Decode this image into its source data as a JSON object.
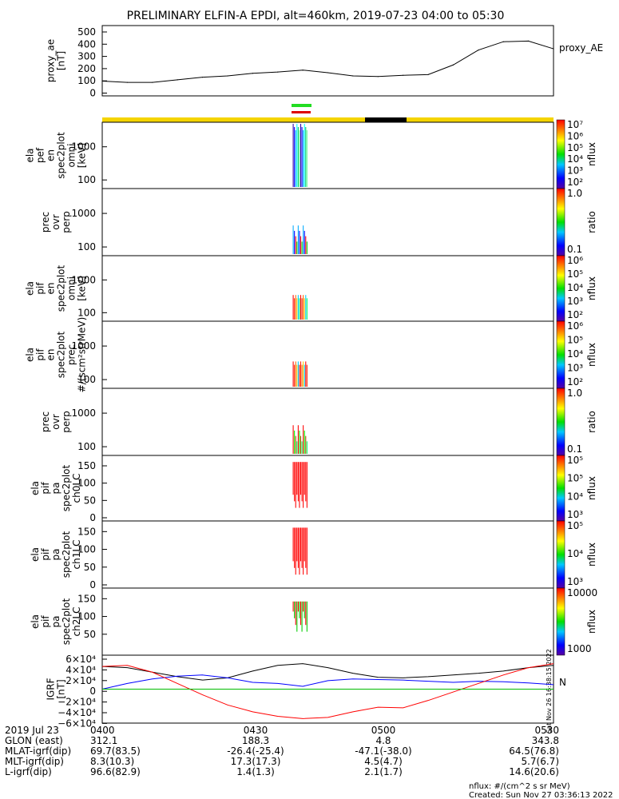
{
  "title": "PRELIMINARY ELFIN-A EPDI, alt=460km, 2019-07-23 04:00 to 05:30",
  "colors": {
    "status_bar": "#f5d400",
    "eclipse_bar": "#000000",
    "science_green": "#22dd22",
    "science_red": "#dd0000",
    "background": "#ffffff"
  },
  "panels": [
    {
      "ylabel": [
        "proxy_ae",
        "[nT]"
      ],
      "right_label": "proxy_AE",
      "yticks": [
        "500",
        "400",
        "300",
        "200",
        "100",
        "0"
      ]
    },
    {
      "ylabel": [
        "ela",
        "pef",
        "en",
        "spec2plot",
        "omni",
        "[keV]"
      ],
      "yticks": [
        "1000",
        "100"
      ],
      "colorbar": {
        "ticks": [
          "10⁷",
          "10⁶",
          "10⁵",
          "10⁴",
          "10³",
          "10²"
        ],
        "label": "nflux"
      }
    },
    {
      "ylabel": [
        "prec",
        "ovr",
        "perp"
      ],
      "yticks": [
        "1000",
        "100"
      ],
      "colorbar": {
        "ticks": [
          "1.0",
          "0.1"
        ],
        "label": "ratio"
      }
    },
    {
      "ylabel": [
        "ela",
        "pif",
        "en",
        "spec2plot",
        "omni",
        "[keV]"
      ],
      "yticks": [
        "1000",
        "100"
      ],
      "colorbar": {
        "ticks": [
          "10⁶",
          "10⁵",
          "10⁴",
          "10³",
          "10²"
        ],
        "label": "nflux"
      }
    },
    {
      "ylabel": [
        "ela",
        "pif",
        "en",
        "spec2plot",
        "prec",
        "#/(scm²strMeV)"
      ],
      "yticks": [
        "1000",
        "100"
      ],
      "colorbar": {
        "ticks": [
          "10⁶",
          "10⁵",
          "10⁴",
          "10³",
          "10²"
        ],
        "label": "nflux"
      }
    },
    {
      "ylabel": [
        "prec",
        "ovr",
        "perp"
      ],
      "yticks": [
        "1000",
        "100"
      ],
      "colorbar": {
        "ticks": [
          "1.0",
          "0.1"
        ],
        "label": "ratio"
      }
    },
    {
      "ylabel": [
        "ela",
        "pif",
        "pa",
        "spec2plot",
        "ch0LC"
      ],
      "yticks": [
        "150",
        "100",
        "50",
        "0"
      ],
      "colorbar": {
        "ticks": [
          "10⁵",
          "10⁵",
          "10⁴",
          "10³"
        ],
        "label": "nflux"
      }
    },
    {
      "ylabel": [
        "ela",
        "pif",
        "pa",
        "spec2plot",
        "ch1LC"
      ],
      "yticks": [
        "150",
        "100",
        "50",
        "0"
      ],
      "colorbar": {
        "ticks": [
          "10⁵",
          "10⁴",
          "10³"
        ],
        "label": "nflux"
      }
    },
    {
      "ylabel": [
        "ela",
        "pif",
        "pa",
        "spec2plot",
        "ch2LC"
      ],
      "yticks": [
        "150",
        "100",
        "50"
      ],
      "colorbar": {
        "ticks": [
          "10000",
          "1000"
        ],
        "label": "nflux"
      }
    },
    {
      "ylabel": [
        "IGRF",
        "[nT]"
      ],
      "yticks": [
        "6×10⁴",
        "4×10⁴",
        "2×10⁴",
        "0",
        "−2×10⁴",
        "−4×10⁴",
        "−6×10⁴"
      ],
      "side_text": "Sat Nov 26 16:38:15 2022",
      "legend_glyph": "N"
    }
  ],
  "ephemeris": {
    "rows": [
      {
        "label": "2019 Jul 23",
        "values": [
          "0400",
          "0430",
          "0500",
          "0530"
        ]
      },
      {
        "label": "GLON (east)",
        "values": [
          "312.1",
          "188.3",
          "4.8",
          "343.8"
        ]
      },
      {
        "label": "MLAT-igrf(dip)",
        "values": [
          "69.7(83.5)",
          "-26.4(-25.4)",
          "-47.1(-38.0)",
          "64.5(76.8)"
        ]
      },
      {
        "label": "MLT-igrf(dip)",
        "values": [
          "8.3(10.3)",
          "17.3(17.3)",
          "4.5(4.7)",
          "5.7(6.7)"
        ]
      },
      {
        "label": "L-igrf(dip)",
        "values": [
          "96.6(82.9)",
          "1.4(1.3)",
          "2.1(1.7)",
          "14.6(20.6)"
        ]
      }
    ]
  },
  "footer": {
    "units": "nflux: #/(cm^2 s sr MeV)",
    "created": "Created: Sun Nov 27 03:36:13 2022"
  },
  "chart_data": [
    {
      "type": "line",
      "title": "PRELIMINARY ELFIN-A EPDI, alt=460km, 2019-07-23 04:00 to 05:30",
      "ylabel": "proxy_ae [nT]",
      "x": [
        "04:00",
        "04:05",
        "04:10",
        "04:15",
        "04:20",
        "04:25",
        "04:30",
        "04:35",
        "04:40",
        "04:45",
        "04:50",
        "04:55",
        "05:00",
        "05:05",
        "05:10",
        "05:15",
        "05:20",
        "05:25",
        "05:30"
      ],
      "series": [
        {
          "name": "proxy_AE",
          "values": [
            90,
            80,
            80,
            100,
            120,
            130,
            150,
            160,
            175,
            155,
            130,
            125,
            135,
            140,
            215,
            330,
            395,
            400,
            340
          ]
        }
      ],
      "ylim": [
        0,
        520
      ]
    },
    {
      "type": "heatmap",
      "ylabel": "ela pef en spec2plot omni [keV]",
      "x_range": [
        "04:00",
        "05:30"
      ],
      "y_scale": "log",
      "colorbar_label": "nflux",
      "colorbar_range": [
        "10^2",
        "10^7"
      ],
      "burst_time_range": [
        "04:38",
        "04:41"
      ]
    },
    {
      "type": "heatmap",
      "ylabel": "prec ovr perp",
      "y_scale": "log",
      "colorbar_label": "ratio",
      "burst_time_range": [
        "04:38",
        "04:41"
      ]
    },
    {
      "type": "heatmap",
      "ylabel": "ela pif en spec2plot omni [keV]",
      "y_scale": "log",
      "colorbar_label": "nflux",
      "colorbar_range": [
        "10^2",
        "10^6"
      ],
      "burst_time_range": [
        "04:38",
        "04:41"
      ]
    },
    {
      "type": "heatmap",
      "ylabel": "ela pif en spec2plot prec #/(scm2strMeV)",
      "y_scale": "log",
      "colorbar_label": "nflux",
      "colorbar_range": [
        "10^2",
        "10^6"
      ],
      "burst_time_range": [
        "04:38",
        "04:41"
      ]
    },
    {
      "type": "heatmap",
      "ylabel": "prec ovr perp",
      "y_scale": "log",
      "colorbar_label": "ratio",
      "burst_time_range": [
        "04:38",
        "04:41"
      ]
    },
    {
      "type": "heatmap",
      "ylabel": "ela pif pa spec2plot ch0LC",
      "ylim": [
        0,
        180
      ],
      "colorbar_label": "nflux",
      "burst_time_range": [
        "04:38",
        "04:41"
      ]
    },
    {
      "type": "heatmap",
      "ylabel": "ela pif pa spec2plot ch1LC",
      "ylim": [
        0,
        180
      ],
      "colorbar_label": "nflux",
      "burst_time_range": [
        "04:38",
        "04:41"
      ]
    },
    {
      "type": "heatmap",
      "ylabel": "ela pif pa spec2plot ch2LC",
      "ylim": [
        0,
        180
      ],
      "colorbar_label": "nflux",
      "colorbar_range": [
        "1000",
        "10000"
      ],
      "burst_time_range": [
        "04:38",
        "04:41"
      ]
    },
    {
      "type": "line",
      "ylabel": "IGRF [nT]",
      "ylim": [
        -60000,
        60000
      ],
      "x": [
        "04:00",
        "04:05",
        "04:10",
        "04:15",
        "04:20",
        "04:25",
        "04:30",
        "04:35",
        "04:40",
        "04:45",
        "04:50",
        "04:55",
        "05:00",
        "05:05",
        "05:10",
        "05:15",
        "05:20",
        "05:25",
        "05:30"
      ],
      "series": [
        {
          "color": "#000000",
          "values": [
            40000,
            38000,
            30000,
            22000,
            16000,
            20000,
            32000,
            42000,
            45000,
            38000,
            28000,
            21000,
            20000,
            22000,
            25000,
            28000,
            32000,
            38000,
            42000
          ]
        },
        {
          "color": "#0000ff",
          "values": [
            0,
            10000,
            18000,
            23000,
            25000,
            20000,
            12000,
            10000,
            5000,
            15000,
            18000,
            17000,
            16000,
            14000,
            12000,
            14000,
            13000,
            11000,
            8000
          ]
        },
        {
          "color": "#ff0000",
          "values": [
            40000,
            42000,
            30000,
            10000,
            -10000,
            -28000,
            -40000,
            -48000,
            -52000,
            -50000,
            -40000,
            -32000,
            -33000,
            -20000,
            -5000,
            10000,
            25000,
            38000,
            45000
          ]
        },
        {
          "color": "#00bb00",
          "values": [
            0,
            0,
            0,
            0,
            0,
            0,
            0,
            0,
            0,
            0,
            0,
            0,
            0,
            0,
            0,
            0,
            0,
            0,
            0
          ]
        }
      ]
    }
  ]
}
